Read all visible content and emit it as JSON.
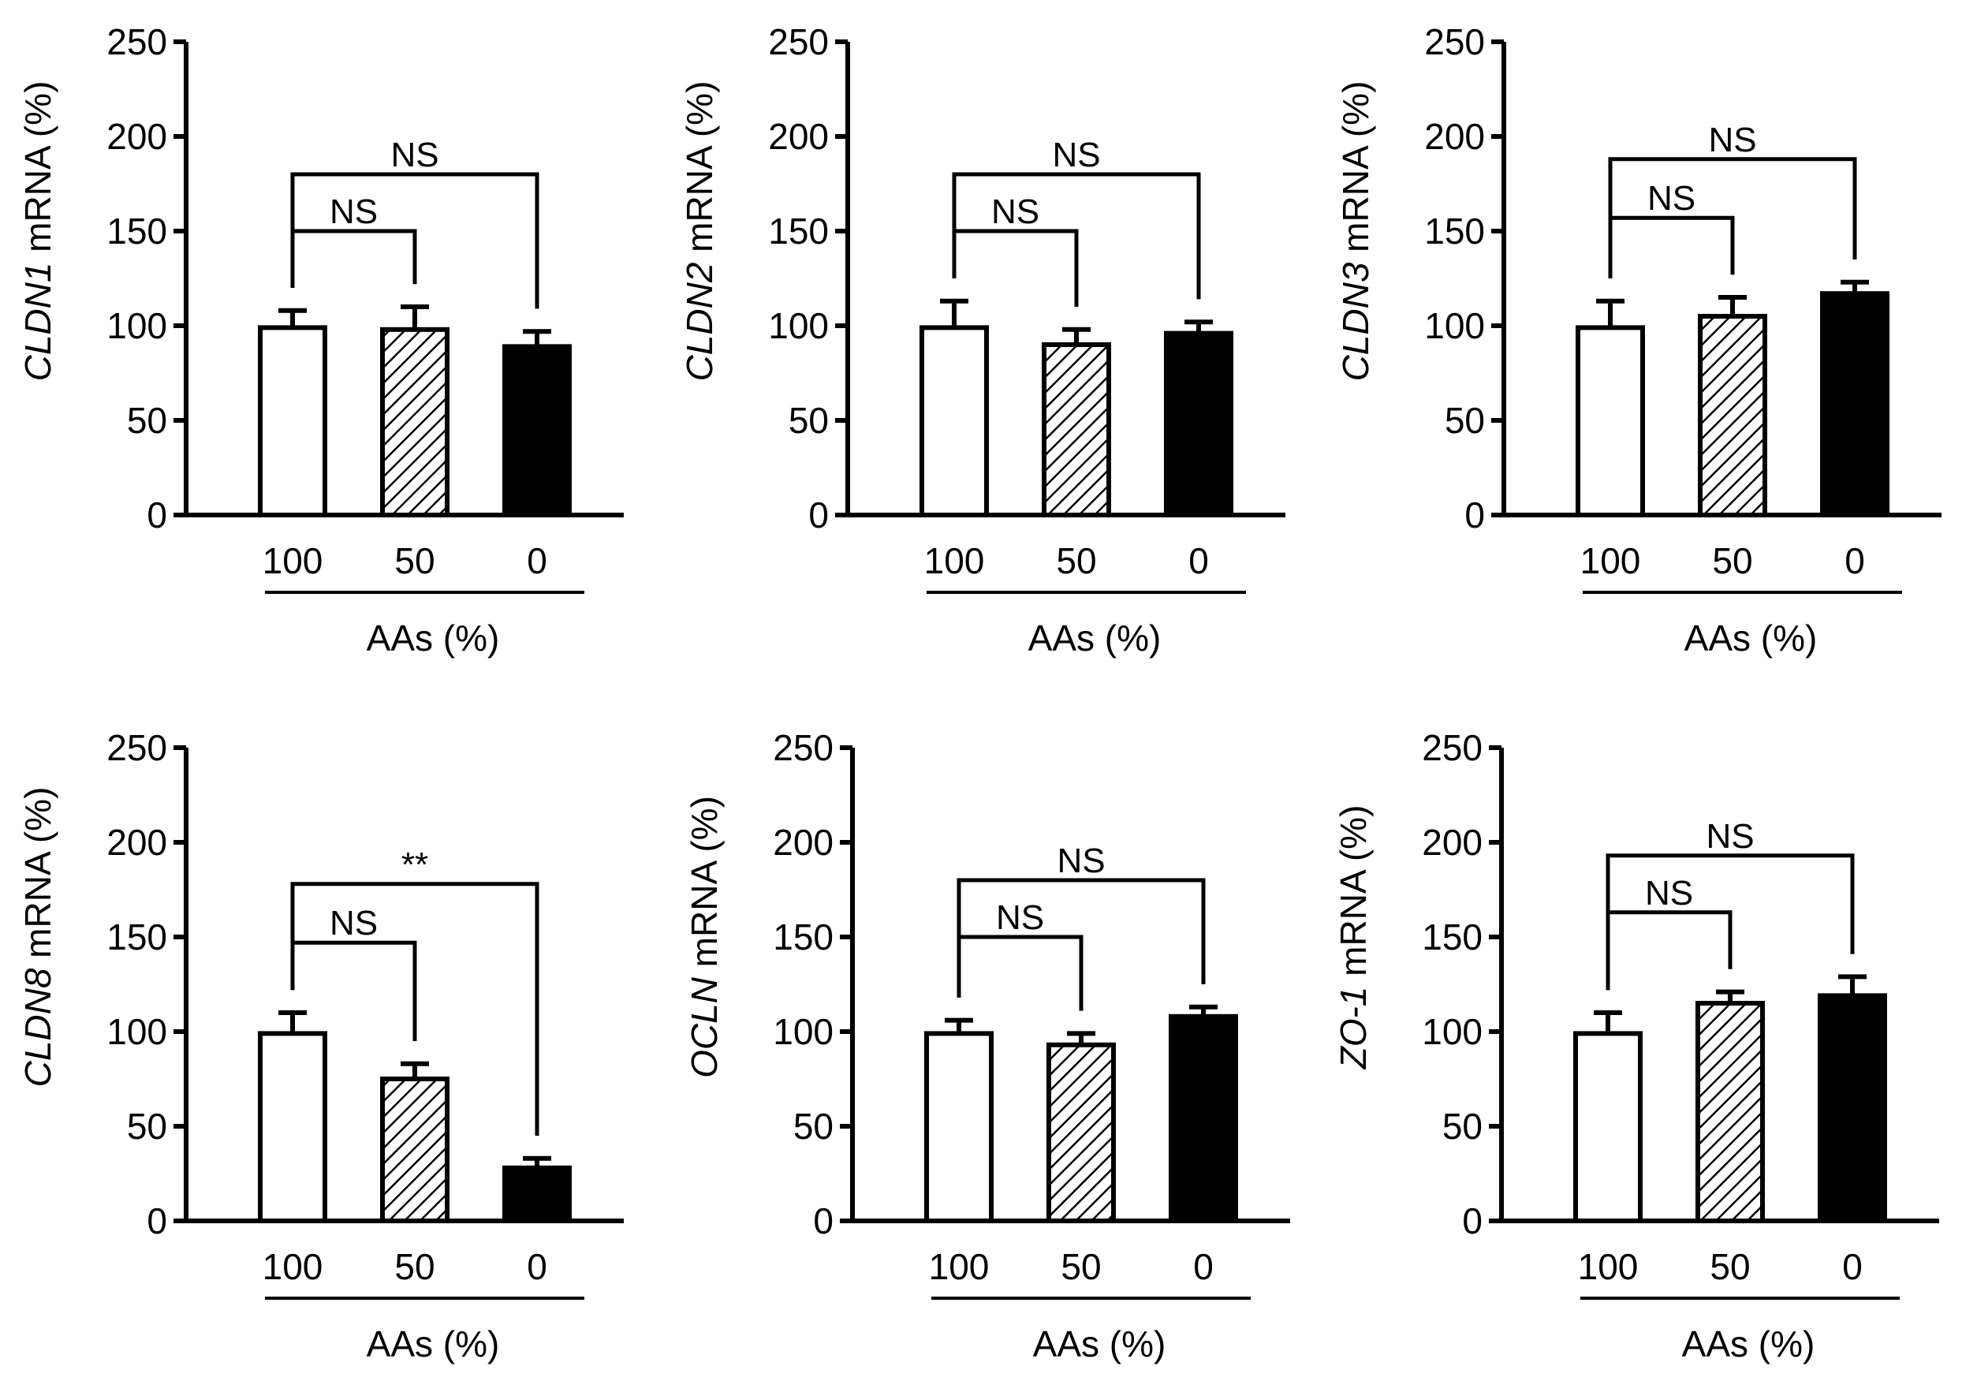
{
  "figure": {
    "background": "#ffffff"
  },
  "style": {
    "bar_colors": {
      "100": "#ffffff",
      "50": "hatch",
      "0": "#000000"
    },
    "ink": "#000000"
  },
  "chart_data": [
    {
      "type": "bar",
      "gene": "CLDN1",
      "ylabel_suffix": " mRNA (%)",
      "xlabel": "AAs (%)",
      "categories": [
        "100",
        "50",
        "0"
      ],
      "values": [
        99,
        98,
        89
      ],
      "errors": [
        9,
        12,
        8
      ],
      "ylim": [
        0,
        250
      ],
      "yticks": [
        0,
        50,
        100,
        150,
        200,
        250
      ],
      "annotations": [
        {
          "from": 0,
          "to": 1,
          "label": "NS",
          "level": 150
        },
        {
          "from": 0,
          "to": 2,
          "label": "NS",
          "level": 180
        }
      ]
    },
    {
      "type": "bar",
      "gene": "CLDN2",
      "ylabel_suffix": " mRNA (%)",
      "xlabel": "AAs (%)",
      "categories": [
        "100",
        "50",
        "0"
      ],
      "values": [
        99,
        90,
        96
      ],
      "errors": [
        14,
        8,
        6
      ],
      "ylim": [
        0,
        250
      ],
      "yticks": [
        0,
        50,
        100,
        150,
        200,
        250
      ],
      "annotations": [
        {
          "from": 0,
          "to": 1,
          "label": "NS",
          "level": 150
        },
        {
          "from": 0,
          "to": 2,
          "label": "NS",
          "level": 180
        }
      ]
    },
    {
      "type": "bar",
      "gene": "CLDN3",
      "ylabel_suffix": " mRNA (%)",
      "xlabel": "AAs (%)",
      "categories": [
        "100",
        "50",
        "0"
      ],
      "values": [
        99,
        105,
        117
      ],
      "errors": [
        14,
        10,
        6
      ],
      "ylim": [
        0,
        250
      ],
      "yticks": [
        0,
        50,
        100,
        150,
        200,
        250
      ],
      "annotations": [
        {
          "from": 0,
          "to": 1,
          "label": "NS",
          "level": 157
        },
        {
          "from": 0,
          "to": 2,
          "label": "NS",
          "level": 188
        }
      ]
    },
    {
      "type": "bar",
      "gene": "CLDN8",
      "ylabel_suffix": " mRNA (%)",
      "xlabel": "AAs (%)",
      "categories": [
        "100",
        "50",
        "0"
      ],
      "values": [
        99,
        75,
        28
      ],
      "errors": [
        11,
        8,
        5
      ],
      "ylim": [
        0,
        250
      ],
      "yticks": [
        0,
        50,
        100,
        150,
        200,
        250
      ],
      "annotations": [
        {
          "from": 0,
          "to": 1,
          "label": "NS",
          "level": 147
        },
        {
          "from": 0,
          "to": 2,
          "label": "**",
          "level": 178
        }
      ]
    },
    {
      "type": "bar",
      "gene": "OCLN",
      "ylabel_suffix": " mRNA (%)",
      "xlabel": "AAs (%)",
      "categories": [
        "100",
        "50",
        "0"
      ],
      "values": [
        99,
        93,
        108
      ],
      "errors": [
        7,
        6,
        5
      ],
      "ylim": [
        0,
        250
      ],
      "yticks": [
        0,
        50,
        100,
        150,
        200,
        250
      ],
      "annotations": [
        {
          "from": 0,
          "to": 1,
          "label": "NS",
          "level": 150
        },
        {
          "from": 0,
          "to": 2,
          "label": "NS",
          "level": 180
        }
      ]
    },
    {
      "type": "bar",
      "gene": "ZO-1",
      "ylabel_suffix": " mRNA (%)",
      "xlabel": "AAs (%)",
      "categories": [
        "100",
        "50",
        "0"
      ],
      "values": [
        99,
        115,
        119
      ],
      "errors": [
        11,
        6,
        10
      ],
      "ylim": [
        0,
        250
      ],
      "yticks": [
        0,
        50,
        100,
        150,
        200,
        250
      ],
      "annotations": [
        {
          "from": 0,
          "to": 1,
          "label": "NS",
          "level": 163
        },
        {
          "from": 0,
          "to": 2,
          "label": "NS",
          "level": 193
        }
      ]
    }
  ]
}
